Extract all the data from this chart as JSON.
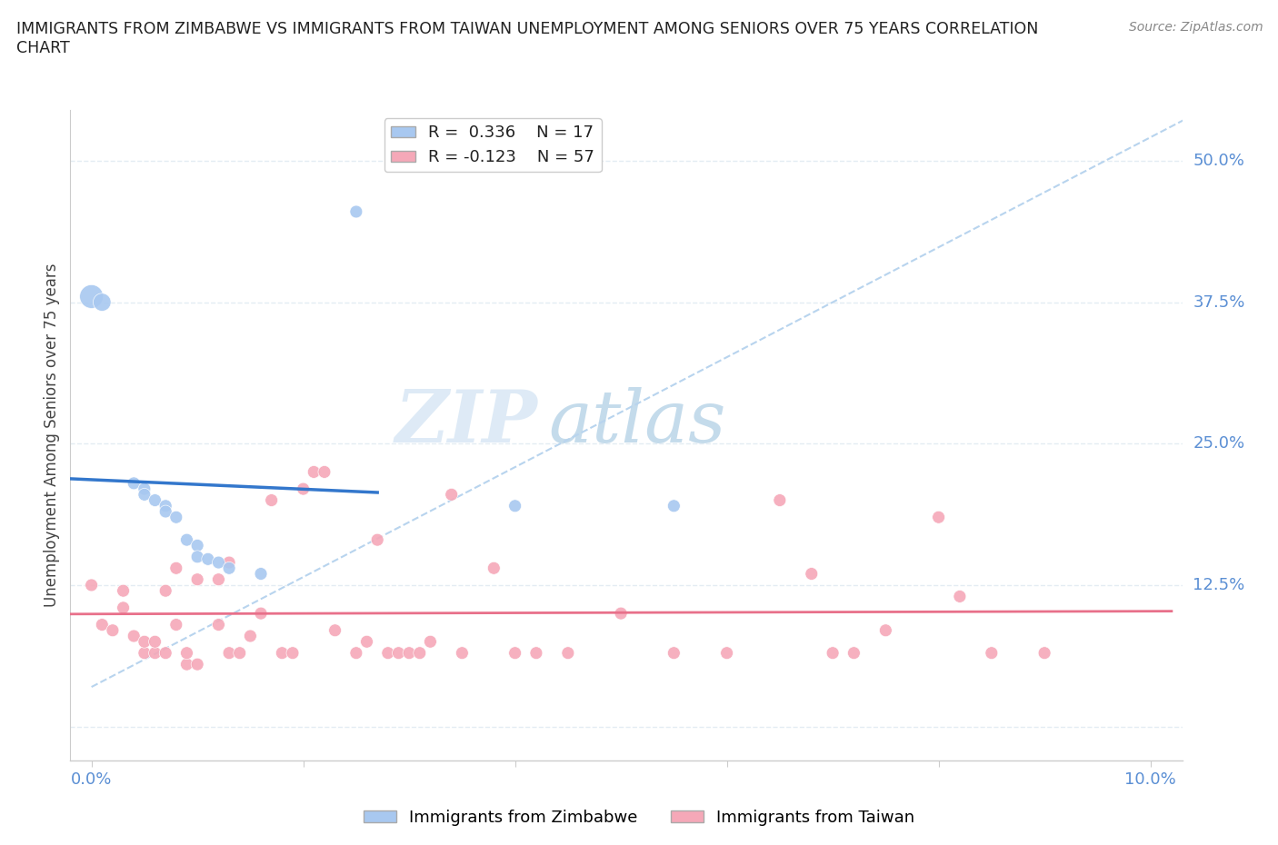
{
  "title_line1": "IMMIGRANTS FROM ZIMBABWE VS IMMIGRANTS FROM TAIWAN UNEMPLOYMENT AMONG SENIORS OVER 75 YEARS CORRELATION",
  "title_line2": "CHART",
  "source_text": "Source: ZipAtlas.com",
  "ylabel": "Unemployment Among Seniors over 75 years",
  "watermark_zip": "ZIP",
  "watermark_atlas": "atlas",
  "background_color": "#ffffff",
  "grid_color": "#dce8f0",
  "zimbabwe_color": "#a8c8f0",
  "taiwan_color": "#f5a8b8",
  "zimbabwe_line_color": "#3377cc",
  "taiwan_line_color": "#e8708a",
  "dashed_line_color": "#b8d4ee",
  "tick_label_color": "#5b8fd4",
  "xlim": [
    -0.002,
    0.103
  ],
  "ylim": [
    -0.03,
    0.545
  ],
  "xticks": [
    0.0,
    0.02,
    0.04,
    0.06,
    0.08,
    0.1
  ],
  "yticks": [
    0.0,
    0.125,
    0.25,
    0.375,
    0.5
  ],
  "zimbabwe_points": [
    [
      0.0,
      0.38
    ],
    [
      0.001,
      0.375
    ],
    [
      0.004,
      0.215
    ],
    [
      0.005,
      0.21
    ],
    [
      0.005,
      0.205
    ],
    [
      0.006,
      0.2
    ],
    [
      0.007,
      0.195
    ],
    [
      0.007,
      0.19
    ],
    [
      0.008,
      0.185
    ],
    [
      0.009,
      0.165
    ],
    [
      0.01,
      0.16
    ],
    [
      0.01,
      0.15
    ],
    [
      0.011,
      0.148
    ],
    [
      0.012,
      0.145
    ],
    [
      0.013,
      0.14
    ],
    [
      0.016,
      0.135
    ],
    [
      0.025,
      0.455
    ],
    [
      0.04,
      0.195
    ],
    [
      0.055,
      0.195
    ]
  ],
  "zimbabwe_sizes": [
    350,
    200,
    100,
    100,
    100,
    100,
    100,
    100,
    100,
    100,
    100,
    100,
    100,
    100,
    100,
    100,
    100,
    100,
    100
  ],
  "taiwan_points": [
    [
      0.0,
      0.125
    ],
    [
      0.001,
      0.09
    ],
    [
      0.002,
      0.085
    ],
    [
      0.003,
      0.105
    ],
    [
      0.003,
      0.12
    ],
    [
      0.004,
      0.08
    ],
    [
      0.005,
      0.065
    ],
    [
      0.005,
      0.075
    ],
    [
      0.006,
      0.065
    ],
    [
      0.006,
      0.075
    ],
    [
      0.007,
      0.065
    ],
    [
      0.007,
      0.12
    ],
    [
      0.008,
      0.09
    ],
    [
      0.008,
      0.14
    ],
    [
      0.009,
      0.055
    ],
    [
      0.009,
      0.065
    ],
    [
      0.01,
      0.055
    ],
    [
      0.01,
      0.13
    ],
    [
      0.012,
      0.13
    ],
    [
      0.012,
      0.09
    ],
    [
      0.013,
      0.065
    ],
    [
      0.013,
      0.145
    ],
    [
      0.014,
      0.065
    ],
    [
      0.015,
      0.08
    ],
    [
      0.016,
      0.1
    ],
    [
      0.017,
      0.2
    ],
    [
      0.018,
      0.065
    ],
    [
      0.019,
      0.065
    ],
    [
      0.02,
      0.21
    ],
    [
      0.021,
      0.225
    ],
    [
      0.022,
      0.225
    ],
    [
      0.023,
      0.085
    ],
    [
      0.025,
      0.065
    ],
    [
      0.026,
      0.075
    ],
    [
      0.027,
      0.165
    ],
    [
      0.028,
      0.065
    ],
    [
      0.029,
      0.065
    ],
    [
      0.03,
      0.065
    ],
    [
      0.031,
      0.065
    ],
    [
      0.032,
      0.075
    ],
    [
      0.034,
      0.205
    ],
    [
      0.035,
      0.065
    ],
    [
      0.038,
      0.14
    ],
    [
      0.04,
      0.065
    ],
    [
      0.042,
      0.065
    ],
    [
      0.045,
      0.065
    ],
    [
      0.05,
      0.1
    ],
    [
      0.055,
      0.065
    ],
    [
      0.06,
      0.065
    ],
    [
      0.065,
      0.2
    ],
    [
      0.068,
      0.135
    ],
    [
      0.07,
      0.065
    ],
    [
      0.072,
      0.065
    ],
    [
      0.075,
      0.085
    ],
    [
      0.08,
      0.185
    ],
    [
      0.082,
      0.115
    ],
    [
      0.085,
      0.065
    ],
    [
      0.09,
      0.065
    ]
  ],
  "taiwan_sizes": [
    100,
    100,
    100,
    100,
    100,
    100,
    100,
    100,
    100,
    100,
    100,
    100,
    100,
    100,
    100,
    100,
    100,
    100,
    100,
    100,
    100,
    100,
    100,
    100,
    100,
    100,
    100,
    100,
    100,
    100,
    100,
    100,
    100,
    100,
    100,
    100,
    100,
    100,
    100,
    100,
    100,
    100,
    100,
    100,
    100,
    100,
    100,
    100,
    100,
    100,
    100,
    100,
    100,
    100,
    100,
    100,
    100,
    100
  ]
}
